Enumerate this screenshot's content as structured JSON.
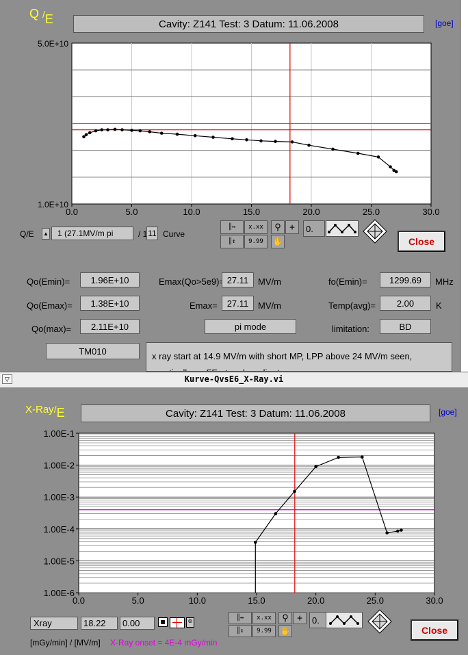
{
  "top": {
    "yaxis_label_q": "Q",
    "yaxis_label_slash": "/",
    "yaxis_label_e": "E",
    "header": "Cavity: Z141   Test: 3   Datum: 11.06.2008",
    "goe": "[goe]",
    "selector_label": "Q/E",
    "selector_value": "1  (27.1MV/m pi",
    "selector_total": "/ 11",
    "selector_suffix": "Curve",
    "tool_value": "0.",
    "close": "Close",
    "fields": {
      "qo_emin_label": "Qo(Emin)=",
      "qo_emin": "1.96E+10",
      "qo_emax_label": "Qo(Emax)=",
      "qo_emax": "1.38E+10",
      "qo_max_label": "Qo(max)=",
      "qo_max": "2.11E+10",
      "emax_q_label": "Emax(Qo>5e9)=",
      "emax_q": "27.11",
      "emax_q_unit": "MV/m",
      "emax_label": "Emax=",
      "emax": "27.11",
      "emax_unit": "MV/m",
      "mode": "pi mode",
      "fo_label": "fo(Emin)=",
      "fo": "1299.69",
      "fo_unit": "MHz",
      "temp_label": "Temp(avg)=",
      "temp": "2.00",
      "temp_unit": "K",
      "limitation_label": "limitation:",
      "limitation": "BD",
      "tm": "TM010",
      "comment": "x ray start at 14.9 MV/m with short MP, LPP above 24 MV/m seen, practically no FE at end gradient"
    }
  },
  "window_title": "Kurve-QvsE6_X-Ray.vi",
  "bottom": {
    "yaxis_label": "X-Ray",
    "yaxis_label_slash": "/",
    "yaxis_label_e": "E",
    "header": "Cavity: Z141   Test: 3   Datum: 11.06.2008",
    "goe": "[goe]",
    "readout_name": "Xray",
    "readout_x": "18.22",
    "readout_y": "0.00",
    "tool_value": "0.",
    "close": "Close",
    "units": "[mGy/min] / [MV/m]",
    "onset": "X-Ray onset = 4E-4 mGy/min"
  },
  "chart_data": [
    {
      "type": "line",
      "scale": "log-y",
      "xlim": [
        0,
        30
      ],
      "ylim": [
        10000000000.0,
        50000000000.0
      ],
      "x_ticks": [
        "0.0",
        "5.0",
        "10.0",
        "15.0",
        "20.0",
        "25.0",
        "30.0"
      ],
      "y_tick_labels": [
        "5.0E+10",
        "1.0E+10"
      ],
      "grid": true,
      "cursor": {
        "x": 18.22,
        "y": 21000000000.0
      },
      "series": [
        {
          "x": [
            1.0,
            1.2,
            1.5,
            2.0,
            2.5,
            3.0,
            3.6,
            4.2,
            5.0,
            5.7,
            6.5,
            7.5,
            8.8,
            10.3,
            11.8,
            13.4,
            14.6,
            15.8,
            17.0,
            18.4,
            19.8,
            21.8,
            23.9,
            25.6,
            26.6,
            26.9,
            27.1
          ],
          "y": [
            19600000000.0,
            20000000000.0,
            20400000000.0,
            20800000000.0,
            21000000000.0,
            21000000000.0,
            21100000000.0,
            21000000000.0,
            20900000000.0,
            20800000000.0,
            20600000000.0,
            20300000000.0,
            20100000000.0,
            19800000000.0,
            19500000000.0,
            19200000000.0,
            19000000000.0,
            18800000000.0,
            18700000000.0,
            18600000000.0,
            18000000000.0,
            17300000000.0,
            16600000000.0,
            16000000000.0,
            14500000000.0,
            14000000000.0,
            13800000000.0
          ]
        }
      ]
    },
    {
      "type": "line",
      "scale": "log-y",
      "xlim": [
        0,
        30
      ],
      "ylim": [
        1e-06,
        0.1
      ],
      "x_ticks": [
        "0.0",
        "5.0",
        "10.0",
        "15.0",
        "20.0",
        "25.0",
        "30.0"
      ],
      "y_tick_labels": [
        "1.00E-1",
        "1.00E-2",
        "1.00E-3",
        "1.00E-4",
        "1.00E-5",
        "1.00E-6"
      ],
      "grid": true,
      "cursor": {
        "x": 18.22
      },
      "threshold": 0.0004,
      "series": [
        {
          "x": [
            14.9,
            14.9,
            16.6,
            18.2,
            20.0,
            21.9,
            23.9,
            26.0,
            26.9,
            27.2
          ],
          "y": [
            1e-06,
            3.8e-05,
            0.0003,
            0.0015,
            0.009,
            0.0175,
            0.018,
            7.5e-05,
            8.5e-05,
            9.2e-05
          ]
        }
      ]
    }
  ]
}
